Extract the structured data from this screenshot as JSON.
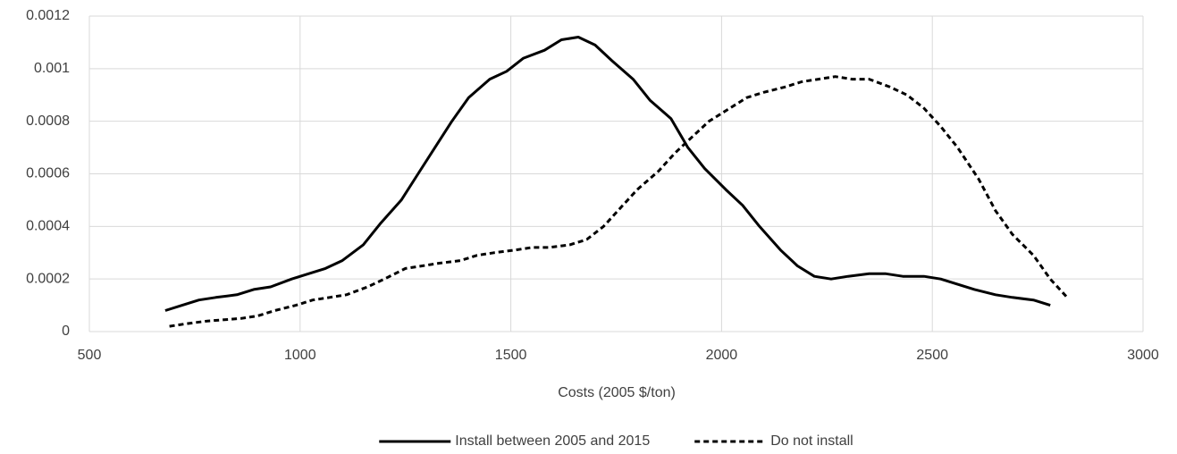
{
  "chart_data": {
    "type": "line",
    "x_label": "Costs (2005 $/ton)",
    "xlim": [
      500,
      3000
    ],
    "xticks": [
      500,
      1000,
      1500,
      2000,
      2500,
      3000
    ],
    "ylim": [
      0,
      0.0012
    ],
    "yticks": [
      0,
      0.0002,
      0.0004,
      0.0006,
      0.0008,
      0.001,
      0.0012
    ],
    "grid": true,
    "legend": "bottom",
    "series": [
      {
        "name": "Install between 2005 and 2015",
        "color": "#000000",
        "dash": "solid",
        "x": [
          680,
          720,
          760,
          800,
          850,
          890,
          930,
          980,
          1020,
          1060,
          1100,
          1150,
          1190,
          1240,
          1280,
          1320,
          1360,
          1400,
          1450,
          1490,
          1530,
          1580,
          1620,
          1660,
          1700,
          1740,
          1790,
          1830,
          1880,
          1920,
          1960,
          2010,
          2050,
          2090,
          2140,
          2180,
          2220,
          2260,
          2300,
          2350,
          2390,
          2430,
          2480,
          2520,
          2560,
          2600,
          2650,
          2690,
          2740,
          2780
        ],
        "values": [
          8e-05,
          0.0001,
          0.00012,
          0.00013,
          0.00014,
          0.00016,
          0.00017,
          0.0002,
          0.00022,
          0.00024,
          0.00027,
          0.00033,
          0.00041,
          0.0005,
          0.0006,
          0.0007,
          0.0008,
          0.00089,
          0.00096,
          0.00099,
          0.00104,
          0.00107,
          0.00111,
          0.00112,
          0.00109,
          0.00103,
          0.00096,
          0.00088,
          0.00081,
          0.0007,
          0.00062,
          0.00054,
          0.00048,
          0.0004,
          0.00031,
          0.00025,
          0.00021,
          0.0002,
          0.00021,
          0.00022,
          0.00022,
          0.00021,
          0.00021,
          0.0002,
          0.00018,
          0.00016,
          0.00014,
          0.00013,
          0.00012,
          0.0001
        ]
      },
      {
        "name": "Do not install",
        "color": "#000000",
        "dash": "dashed",
        "x": [
          690,
          730,
          780,
          820,
          860,
          900,
          940,
          990,
          1030,
          1070,
          1110,
          1160,
          1200,
          1250,
          1290,
          1330,
          1380,
          1420,
          1460,
          1510,
          1550,
          1590,
          1640,
          1680,
          1720,
          1760,
          1800,
          1850,
          1890,
          1930,
          1970,
          2020,
          2060,
          2100,
          2150,
          2190,
          2230,
          2270,
          2310,
          2350,
          2400,
          2440,
          2480,
          2520,
          2560,
          2610,
          2650,
          2690,
          2740,
          2780,
          2820
        ],
        "values": [
          2e-05,
          3e-05,
          4e-05,
          4.5e-05,
          5e-05,
          6e-05,
          8e-05,
          0.0001,
          0.00012,
          0.00013,
          0.00014,
          0.00017,
          0.0002,
          0.00024,
          0.00025,
          0.00026,
          0.00027,
          0.00029,
          0.0003,
          0.00031,
          0.00032,
          0.00032,
          0.00033,
          0.00035,
          0.0004,
          0.00047,
          0.00054,
          0.00061,
          0.00068,
          0.00074,
          0.0008,
          0.00085,
          0.00089,
          0.00091,
          0.00093,
          0.00095,
          0.00096,
          0.00097,
          0.00096,
          0.00096,
          0.00093,
          0.0009,
          0.00085,
          0.00078,
          0.0007,
          0.00058,
          0.00046,
          0.00037,
          0.00029,
          0.0002,
          0.00013
        ]
      }
    ]
  }
}
